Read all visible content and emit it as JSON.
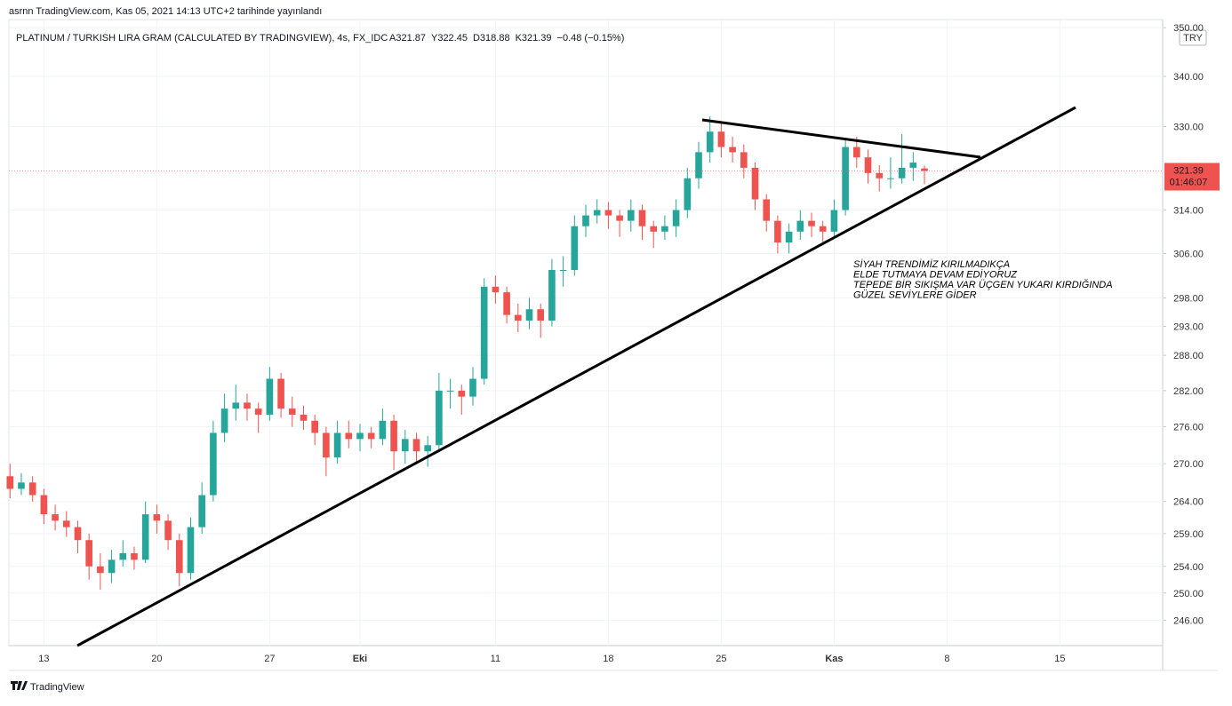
{
  "header": {
    "publisher": "asrnn TradingView.com, Kas 05, 2021 14:13 UTC+2 tarihinde yayınlandı",
    "brand": "TradingView"
  },
  "chart_data": {
    "type": "candlestick",
    "title": "PLATINUM / TURKISH LIRA GRAM (CALCULATED BY TRADINGVIEW), 4s, FX_IDC",
    "ohlc_legend": [
      "A321.87",
      "Y322.45",
      "D318.88",
      "K321.39",
      "−0.48 (−0.15%)"
    ],
    "currency": "TRY",
    "last_price": 321.39,
    "last_price_label": "321.39",
    "countdown": "01:46:07",
    "annotations": [
      "SİYAH TRENDİMİZ KIRILMADIKÇA",
      "ELDE TUTMAYA DEVAM EDİYORUZ",
      "TEPEDE BİR SIKIŞMA VAR ÜÇGEN YUKARI KIRDIĞINDA",
      "GÜZEL  SEVİYLERE GİDER"
    ],
    "up_color": "#26a69a",
    "down_color": "#ef5350",
    "log_scale": true,
    "xlim": [
      -1.55,
      49.55
    ],
    "xticks": [
      {
        "value": 0,
        "label": "13"
      },
      {
        "value": 5,
        "label": "20"
      },
      {
        "value": 10,
        "label": "27"
      },
      {
        "value": 14,
        "label": "Eki"
      },
      {
        "value": 20,
        "label": "11"
      },
      {
        "value": 25,
        "label": "18"
      },
      {
        "value": 30,
        "label": "25"
      },
      {
        "value": 35,
        "label": "Kas"
      },
      {
        "value": 40,
        "label": "8"
      },
      {
        "value": 45,
        "label": "15"
      }
    ],
    "ylim": [
      242.3,
      351.7
    ],
    "yticks": [
      {
        "value": 246,
        "label": "246.00"
      },
      {
        "value": 250,
        "label": "250.00"
      },
      {
        "value": 254,
        "label": "254.00"
      },
      {
        "value": 259,
        "label": "259.00"
      },
      {
        "value": 264,
        "label": "264.00"
      },
      {
        "value": 270,
        "label": "270.00"
      },
      {
        "value": 276,
        "label": "276.00"
      },
      {
        "value": 282,
        "label": "282.00"
      },
      {
        "value": 288,
        "label": "288.00"
      },
      {
        "value": 293,
        "label": "293.00"
      },
      {
        "value": 298,
        "label": "298.00"
      },
      {
        "value": 306,
        "label": "306.00"
      },
      {
        "value": 314,
        "label": "314.00"
      },
      {
        "value": 330,
        "label": "330.00"
      },
      {
        "value": 340,
        "label": "340.00"
      },
      {
        "value": 350,
        "label": "350.00"
      }
    ],
    "x": [
      -1.5,
      -1,
      -0.5,
      0,
      0.5,
      1,
      1.5,
      2,
      2.5,
      3,
      3.5,
      4,
      4.5,
      5,
      5.5,
      6,
      6.5,
      7,
      7.5,
      8,
      8.5,
      9,
      9.5,
      10,
      10.5,
      11,
      11.5,
      12,
      12.5,
      13,
      13.5,
      14,
      14.5,
      15,
      15.5,
      16,
      16.5,
      17,
      17.5,
      18,
      18.5,
      19,
      19.5,
      20,
      20.5,
      21,
      21.5,
      22,
      22.5,
      23,
      23.5,
      24,
      24.5,
      25,
      25.5,
      26,
      26.5,
      27,
      27.5,
      28,
      28.5,
      29,
      29.5,
      30,
      30.5,
      31,
      31.5,
      32,
      32.5,
      33,
      33.5,
      34,
      34.5,
      35,
      35.5,
      36,
      36.5,
      37,
      37.5,
      38,
      38.5,
      39
    ],
    "ohlc": [
      [
        268,
        270,
        264.5,
        266
      ],
      [
        266,
        268.5,
        265,
        267
      ],
      [
        267,
        268,
        264,
        265
      ],
      [
        265,
        266,
        260.5,
        262
      ],
      [
        262,
        263.5,
        259.5,
        261
      ],
      [
        261,
        262.5,
        258.5,
        260
      ],
      [
        260,
        261,
        256,
        258
      ],
      [
        258,
        259,
        252,
        254
      ],
      [
        254,
        256,
        250.5,
        253
      ],
      [
        253,
        256.5,
        251.5,
        255
      ],
      [
        255,
        258,
        254,
        256
      ],
      [
        256,
        257,
        253.5,
        255
      ],
      [
        255,
        264,
        254.5,
        262
      ],
      [
        262,
        263.5,
        259,
        261
      ],
      [
        261,
        262,
        256.5,
        258
      ],
      [
        258,
        259,
        251,
        253
      ],
      [
        253,
        261.5,
        252,
        260
      ],
      [
        260,
        267,
        259,
        265
      ],
      [
        265,
        277,
        264,
        275
      ],
      [
        275,
        281.5,
        273.5,
        279
      ],
      [
        279,
        283,
        277,
        280
      ],
      [
        280,
        281.5,
        277,
        279
      ],
      [
        279,
        280,
        275,
        278
      ],
      [
        278,
        286,
        277,
        284
      ],
      [
        284,
        285,
        277.5,
        279
      ],
      [
        279,
        281,
        276,
        278
      ],
      [
        278,
        279.5,
        275.5,
        277
      ],
      [
        277,
        278,
        273,
        275
      ],
      [
        275,
        276,
        268,
        271
      ],
      [
        271,
        277,
        270,
        275
      ],
      [
        275,
        277,
        272.5,
        274
      ],
      [
        274,
        276.5,
        272,
        275
      ],
      [
        275,
        276,
        272.5,
        274
      ],
      [
        274,
        279,
        273,
        277
      ],
      [
        277,
        278,
        269,
        272
      ],
      [
        272,
        275.5,
        270,
        274
      ],
      [
        274,
        275,
        270,
        272
      ],
      [
        272,
        274.5,
        269.5,
        273
      ],
      [
        273,
        285,
        272,
        282
      ],
      [
        282,
        284,
        279,
        282
      ],
      [
        282,
        283,
        278,
        281
      ],
      [
        281,
        286,
        279.5,
        284
      ],
      [
        284,
        301.5,
        283,
        300
      ],
      [
        300,
        302,
        297,
        299
      ],
      [
        299,
        300,
        293.5,
        295
      ],
      [
        295,
        297,
        292,
        294
      ],
      [
        294,
        298,
        292.5,
        296
      ],
      [
        296,
        297,
        291,
        294
      ],
      [
        294,
        305,
        293,
        303
      ],
      [
        303,
        305.5,
        300,
        303
      ],
      [
        303,
        313,
        302,
        311
      ],
      [
        311,
        315,
        309,
        313
      ],
      [
        313,
        316,
        311.5,
        314
      ],
      [
        314,
        315.5,
        310.5,
        313
      ],
      [
        313,
        314,
        309,
        312
      ],
      [
        312,
        316,
        310,
        314
      ],
      [
        314,
        315,
        308.5,
        311
      ],
      [
        311,
        312,
        307,
        310
      ],
      [
        310,
        313,
        308.5,
        311
      ],
      [
        311,
        316,
        309,
        314
      ],
      [
        314,
        322,
        312.5,
        320
      ],
      [
        320,
        327,
        318,
        325
      ],
      [
        325,
        332,
        323,
        329
      ],
      [
        329,
        331,
        324,
        326
      ],
      [
        326,
        328,
        323,
        325
      ],
      [
        325,
        326.5,
        320,
        322
      ],
      [
        322,
        323,
        314,
        316
      ],
      [
        316,
        317,
        310,
        312
      ],
      [
        312,
        313,
        306,
        308
      ],
      [
        308,
        311.5,
        306,
        310
      ],
      [
        310,
        314,
        308.5,
        312
      ],
      [
        312,
        313.5,
        309,
        311
      ],
      [
        311,
        312,
        307.5,
        310
      ],
      [
        310,
        316,
        309,
        314
      ],
      [
        314,
        327.5,
        313,
        326
      ],
      [
        326,
        328,
        322,
        324
      ],
      [
        324,
        325.5,
        319,
        321
      ],
      [
        321,
        322.5,
        317.5,
        320
      ],
      [
        320,
        324,
        318,
        320
      ],
      [
        320,
        328.5,
        319,
        322
      ],
      [
        322,
        325,
        319.5,
        323
      ],
      [
        321.87,
        322.45,
        318.88,
        321.39
      ]
    ]
  }
}
